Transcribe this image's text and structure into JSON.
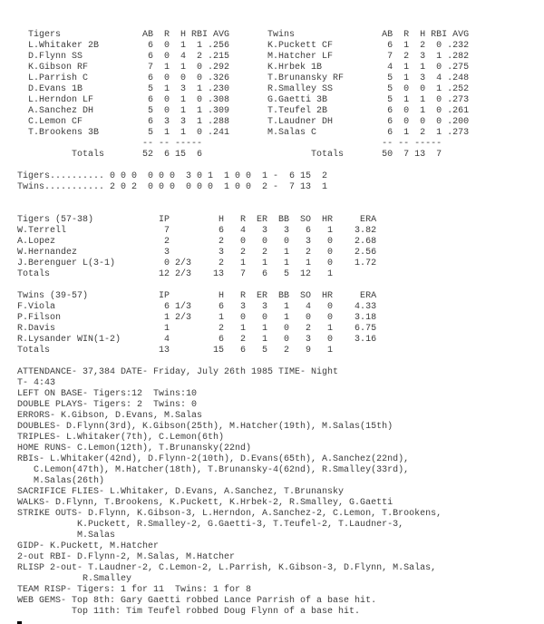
{
  "page": {
    "background": "#ffffff",
    "text_color": "#3b3b3b",
    "cursor_color": "#000000"
  },
  "batting": {
    "columns": [
      "AB",
      "R",
      "H",
      "RBI",
      "AVG"
    ],
    "dashes": [
      "--",
      "--",
      "--",
      "---"
    ],
    "teams": [
      {
        "name": "Tigers",
        "players": [
          {
            "name": "L.Whitaker 2B",
            "ab": "6",
            "r": "0",
            "h": "1",
            "rbi": "1",
            "avg": ".256"
          },
          {
            "name": "D.Flynn SS",
            "ab": "6",
            "r": "0",
            "h": "4",
            "rbi": "2",
            "avg": ".215"
          },
          {
            "name": "K.Gibson RF",
            "ab": "7",
            "r": "1",
            "h": "1",
            "rbi": "0",
            "avg": ".292"
          },
          {
            "name": "L.Parrish C",
            "ab": "6",
            "r": "0",
            "h": "0",
            "rbi": "0",
            "avg": ".326"
          },
          {
            "name": "D.Evans 1B",
            "ab": "5",
            "r": "1",
            "h": "3",
            "rbi": "1",
            "avg": ".230"
          },
          {
            "name": "L.Herndon LF",
            "ab": "6",
            "r": "0",
            "h": "1",
            "rbi": "0",
            "avg": ".308"
          },
          {
            "name": "A.Sanchez DH",
            "ab": "5",
            "r": "0",
            "h": "1",
            "rbi": "1",
            "avg": ".309"
          },
          {
            "name": "C.Lemon CF",
            "ab": "6",
            "r": "3",
            "h": "3",
            "rbi": "1",
            "avg": ".288"
          },
          {
            "name": "T.Brookens 3B",
            "ab": "5",
            "r": "1",
            "h": "1",
            "rbi": "0",
            "avg": ".241"
          }
        ],
        "totals": {
          "label": "Totals",
          "ab": "52",
          "r": "6",
          "h": "15",
          "rbi": "6"
        }
      },
      {
        "name": "Twins",
        "players": [
          {
            "name": "K.Puckett CF",
            "ab": "6",
            "r": "1",
            "h": "2",
            "rbi": "0",
            "avg": ".232"
          },
          {
            "name": "M.Hatcher LF",
            "ab": "7",
            "r": "2",
            "h": "3",
            "rbi": "1",
            "avg": ".282"
          },
          {
            "name": "K.Hrbek 1B",
            "ab": "4",
            "r": "1",
            "h": "1",
            "rbi": "0",
            "avg": ".275"
          },
          {
            "name": "T.Brunansky RF",
            "ab": "5",
            "r": "1",
            "h": "3",
            "rbi": "4",
            "avg": ".248"
          },
          {
            "name": "R.Smalley SS",
            "ab": "5",
            "r": "0",
            "h": "0",
            "rbi": "1",
            "avg": ".252"
          },
          {
            "name": "G.Gaetti 3B",
            "ab": "5",
            "r": "1",
            "h": "1",
            "rbi": "0",
            "avg": ".273"
          },
          {
            "name": "T.Teufel 2B",
            "ab": "6",
            "r": "0",
            "h": "1",
            "rbi": "0",
            "avg": ".261"
          },
          {
            "name": "T.Laudner DH",
            "ab": "6",
            "r": "0",
            "h": "0",
            "rbi": "0",
            "avg": ".200"
          },
          {
            "name": "M.Salas C",
            "ab": "6",
            "r": "1",
            "h": "2",
            "rbi": "1",
            "avg": ".273"
          }
        ],
        "totals": {
          "label": "Totals",
          "ab": "50",
          "r": "7",
          "h": "13",
          "rbi": "7"
        }
      }
    ]
  },
  "linescore": [
    {
      "team": "Tigers",
      "innings": [
        "0",
        "0",
        "0",
        "0",
        "0",
        "0",
        "3",
        "0",
        "1",
        "1",
        "0",
        "0",
        "1"
      ],
      "runs": "6",
      "hits": "15",
      "errors": "2"
    },
    {
      "team": "Twins",
      "innings": [
        "2",
        "0",
        "2",
        "0",
        "0",
        "0",
        "0",
        "0",
        "0",
        "1",
        "0",
        "0",
        "2"
      ],
      "runs": "7",
      "hits": "13",
      "errors": "1"
    }
  ],
  "pitching": {
    "columns": [
      "IP",
      "H",
      "R",
      "ER",
      "BB",
      "SO",
      "HR",
      "ERA"
    ],
    "teams": [
      {
        "name": "Tigers (57-38)",
        "pitchers": [
          {
            "name": "W.Terrell",
            "ip": "7",
            "h": "6",
            "r": "4",
            "er": "3",
            "bb": "3",
            "so": "6",
            "hr": "1",
            "era": "3.82"
          },
          {
            "name": "A.Lopez",
            "ip": "2",
            "h": "2",
            "r": "0",
            "er": "0",
            "bb": "0",
            "so": "3",
            "hr": "0",
            "era": "2.68"
          },
          {
            "name": "W.Hernandez",
            "ip": "3",
            "h": "3",
            "r": "2",
            "er": "2",
            "bb": "1",
            "so": "2",
            "hr": "0",
            "era": "2.56"
          },
          {
            "name": "J.Berenguer L(3-1)",
            "ip": "0 2/3",
            "h": "2",
            "r": "1",
            "er": "1",
            "bb": "1",
            "so": "1",
            "hr": "0",
            "era": "1.72"
          }
        ],
        "totals": {
          "label": "Totals",
          "ip": "12 2/3",
          "h": "13",
          "r": "7",
          "er": "6",
          "bb": "5",
          "so": "12",
          "hr": "1"
        }
      },
      {
        "name": "Twins (39-57)",
        "pitchers": [
          {
            "name": "F.Viola",
            "ip": "6 1/3",
            "h": "6",
            "r": "3",
            "er": "3",
            "bb": "1",
            "so": "4",
            "hr": "0",
            "era": "4.33"
          },
          {
            "name": "P.Filson",
            "ip": "1 2/3",
            "h": "1",
            "r": "0",
            "er": "0",
            "bb": "1",
            "so": "0",
            "hr": "0",
            "era": "3.18"
          },
          {
            "name": "R.Davis",
            "ip": "1",
            "h": "2",
            "r": "1",
            "er": "1",
            "bb": "0",
            "so": "2",
            "hr": "1",
            "era": "6.75"
          },
          {
            "name": "R.Lysander WIN(1-2)",
            "ip": "4",
            "h": "6",
            "r": "2",
            "er": "1",
            "bb": "0",
            "so": "3",
            "hr": "0",
            "era": "3.16"
          }
        ],
        "totals": {
          "label": "Totals",
          "ip": "13",
          "h": "15",
          "r": "6",
          "er": "5",
          "bb": "2",
          "so": "9",
          "hr": "1"
        }
      }
    ]
  },
  "notes": [
    "ATTENDANCE- 37,384 DATE- Friday, July 26th 1985 TIME- Night",
    "T- 4:43",
    "LEFT ON BASE- Tigers:12  Twins:10",
    "DOUBLE PLAYS- Tigers: 2  Twins: 0",
    "ERRORS- K.Gibson, D.Evans, M.Salas",
    "DOUBLES- D.Flynn(3rd), K.Gibson(25th), M.Hatcher(19th), M.Salas(15th)",
    "TRIPLES- L.Whitaker(7th), C.Lemon(6th)",
    "HOME RUNS- C.Lemon(12th), T.Brunansky(22nd)",
    "RBIs- L.Whitaker(42nd), D.Flynn-2(10th), D.Evans(65th), A.Sanchez(22nd),",
    "   C.Lemon(47th), M.Hatcher(18th), T.Brunansky-4(62nd), R.Smalley(33rd),",
    "   M.Salas(26th)",
    "SACRIFICE FLIES- L.Whitaker, D.Evans, A.Sanchez, T.Brunansky",
    "WALKS- D.Flynn, T.Brookens, K.Puckett, K.Hrbek-2, R.Smalley, G.Gaetti",
    "STRIKE OUTS- D.Flynn, K.Gibson-3, L.Herndon, A.Sanchez-2, C.Lemon, T.Brookens,",
    "           K.Puckett, R.Smalley-2, G.Gaetti-3, T.Teufel-2, T.Laudner-3,",
    "           M.Salas",
    "GIDP- K.Puckett, M.Hatcher",
    "2-out RBI- D.Flynn-2, M.Salas, M.Hatcher",
    "RLISP 2-out- T.Laudner-2, C.Lemon-2, L.Parrish, K.Gibson-3, D.Flynn, M.Salas,",
    "            R.Smalley",
    "TEAM RISP- Tigers: 1 for 11  Twins: 1 for 8",
    "WEB GEMS- Top 8th: Gary Gaetti robbed Lance Parrish of a base hit.",
    "          Top 11th: Tim Teufel robbed Doug Flynn of a base hit."
  ]
}
